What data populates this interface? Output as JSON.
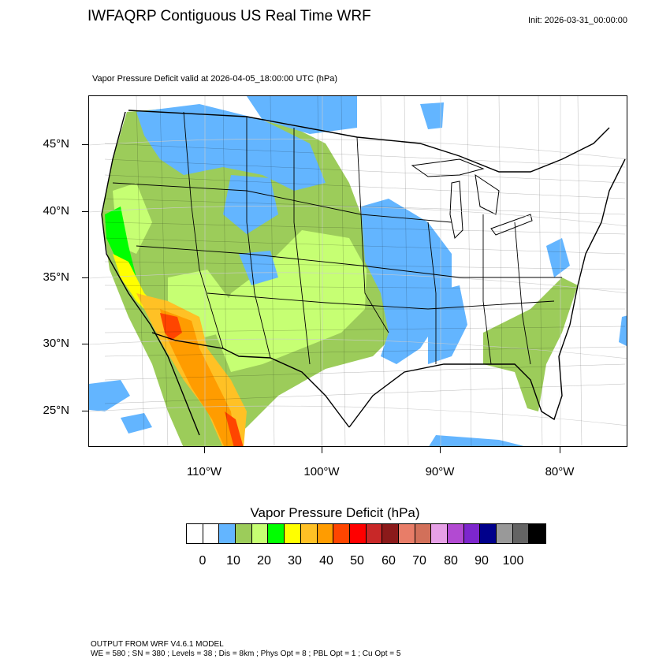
{
  "header": {
    "title": "IWFAQRP Contiguous US Real Time WRF",
    "init": "Init: 2026-03-31_00:00:00",
    "subtitle": "Vapor Pressure Deficit valid at 2026-04-05_18:00:00 UTC   (hPa)"
  },
  "map": {
    "lat_labels": [
      "45°N",
      "40°N",
      "35°N",
      "30°N",
      "25°N"
    ],
    "lon_labels": [
      "110°W",
      "100°W",
      "90°W",
      "80°W"
    ],
    "background_color": "#ffffff"
  },
  "legend": {
    "title": "Vapor Pressure Deficit  (hPa)",
    "tick_labels": [
      "0",
      "10",
      "20",
      "30",
      "40",
      "50",
      "60",
      "70",
      "80",
      "90",
      "100"
    ],
    "colors": [
      "#ffffff",
      "#ffffff",
      "#63b5ff",
      "#9ccc5a",
      "#c6ff73",
      "#00ff00",
      "#ffff00",
      "#ffc125",
      "#ff9c00",
      "#ff4500",
      "#ff0000",
      "#c82828",
      "#8b1a1a",
      "#e87d68",
      "#d2705a",
      "#e6a0e6",
      "#b24ad2",
      "#7d26cd",
      "#00008b",
      "#999999",
      "#646464",
      "#000000"
    ]
  },
  "footer": {
    "line1": "OUTPUT FROM WRF V4.6.1 MODEL",
    "line2": "WE = 580 ; SN = 380 ; Levels = 38 ; Dis = 8km ; Phys Opt = 8 ; PBL Opt = 1 ; Cu Opt = 5"
  }
}
